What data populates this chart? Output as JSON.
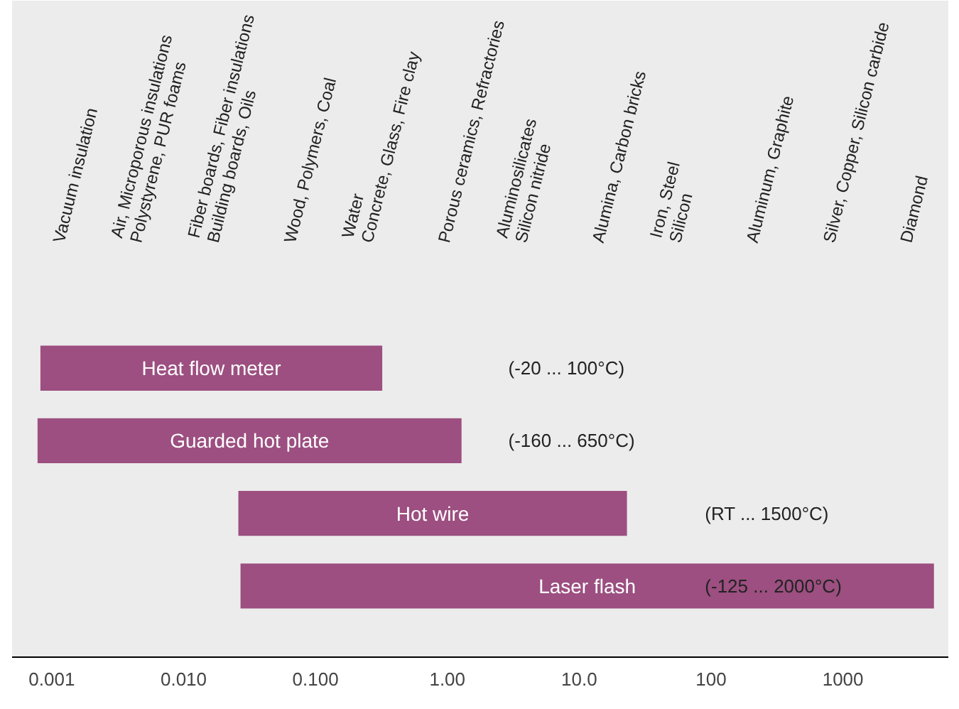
{
  "chart_data": {
    "type": "bar",
    "orientation": "horizontal",
    "log": "x",
    "categories": [
      "Heat flow meter",
      "Guarded hot plate",
      "Hot wire",
      "Laser flash"
    ],
    "base": [
      0.00082,
      0.00078,
      0.026,
      0.027
    ],
    "values": [
      0.32,
      1.28,
      23,
      4900
    ],
    "color": "#9c4f80",
    "xlim": [
      0.0005,
      6300
    ],
    "xticks": [
      0.001,
      {
        "value": 0.01,
        "label": "0.010"
      },
      {
        "value": 0.1,
        "label": "0.100"
      },
      {
        "value": 1,
        "label": "1.00"
      },
      {
        "value": 10,
        "label": "10.0"
      },
      100,
      1000
    ],
    "tick_labels": "x",
    "grid": false,
    "annotations": [
      "Vacuum insulation",
      "Air, Microporous insulations\nPolystyrene, PUR foams",
      "Fiber boards, Fiber insulations\nBuilding boards, Oils",
      "Wood, Polymers, Coal",
      "Water\nConcrete, Glass, Fire clay",
      "Porous ceramics, Refractories",
      "Aluminosilicates\nSilicon nitride",
      "Alumina, Carbon bricks",
      "Iron, Steel\nSilicon",
      "Aluminum, Graphite",
      "Silver, Copper, Silicon carbide",
      "Diamond",
      "(-20 ... 100°C)",
      "(-160 ... 650°C)",
      "(RT ... 1500°C)",
      "(-125 ... 2000°C)"
    ]
  }
}
